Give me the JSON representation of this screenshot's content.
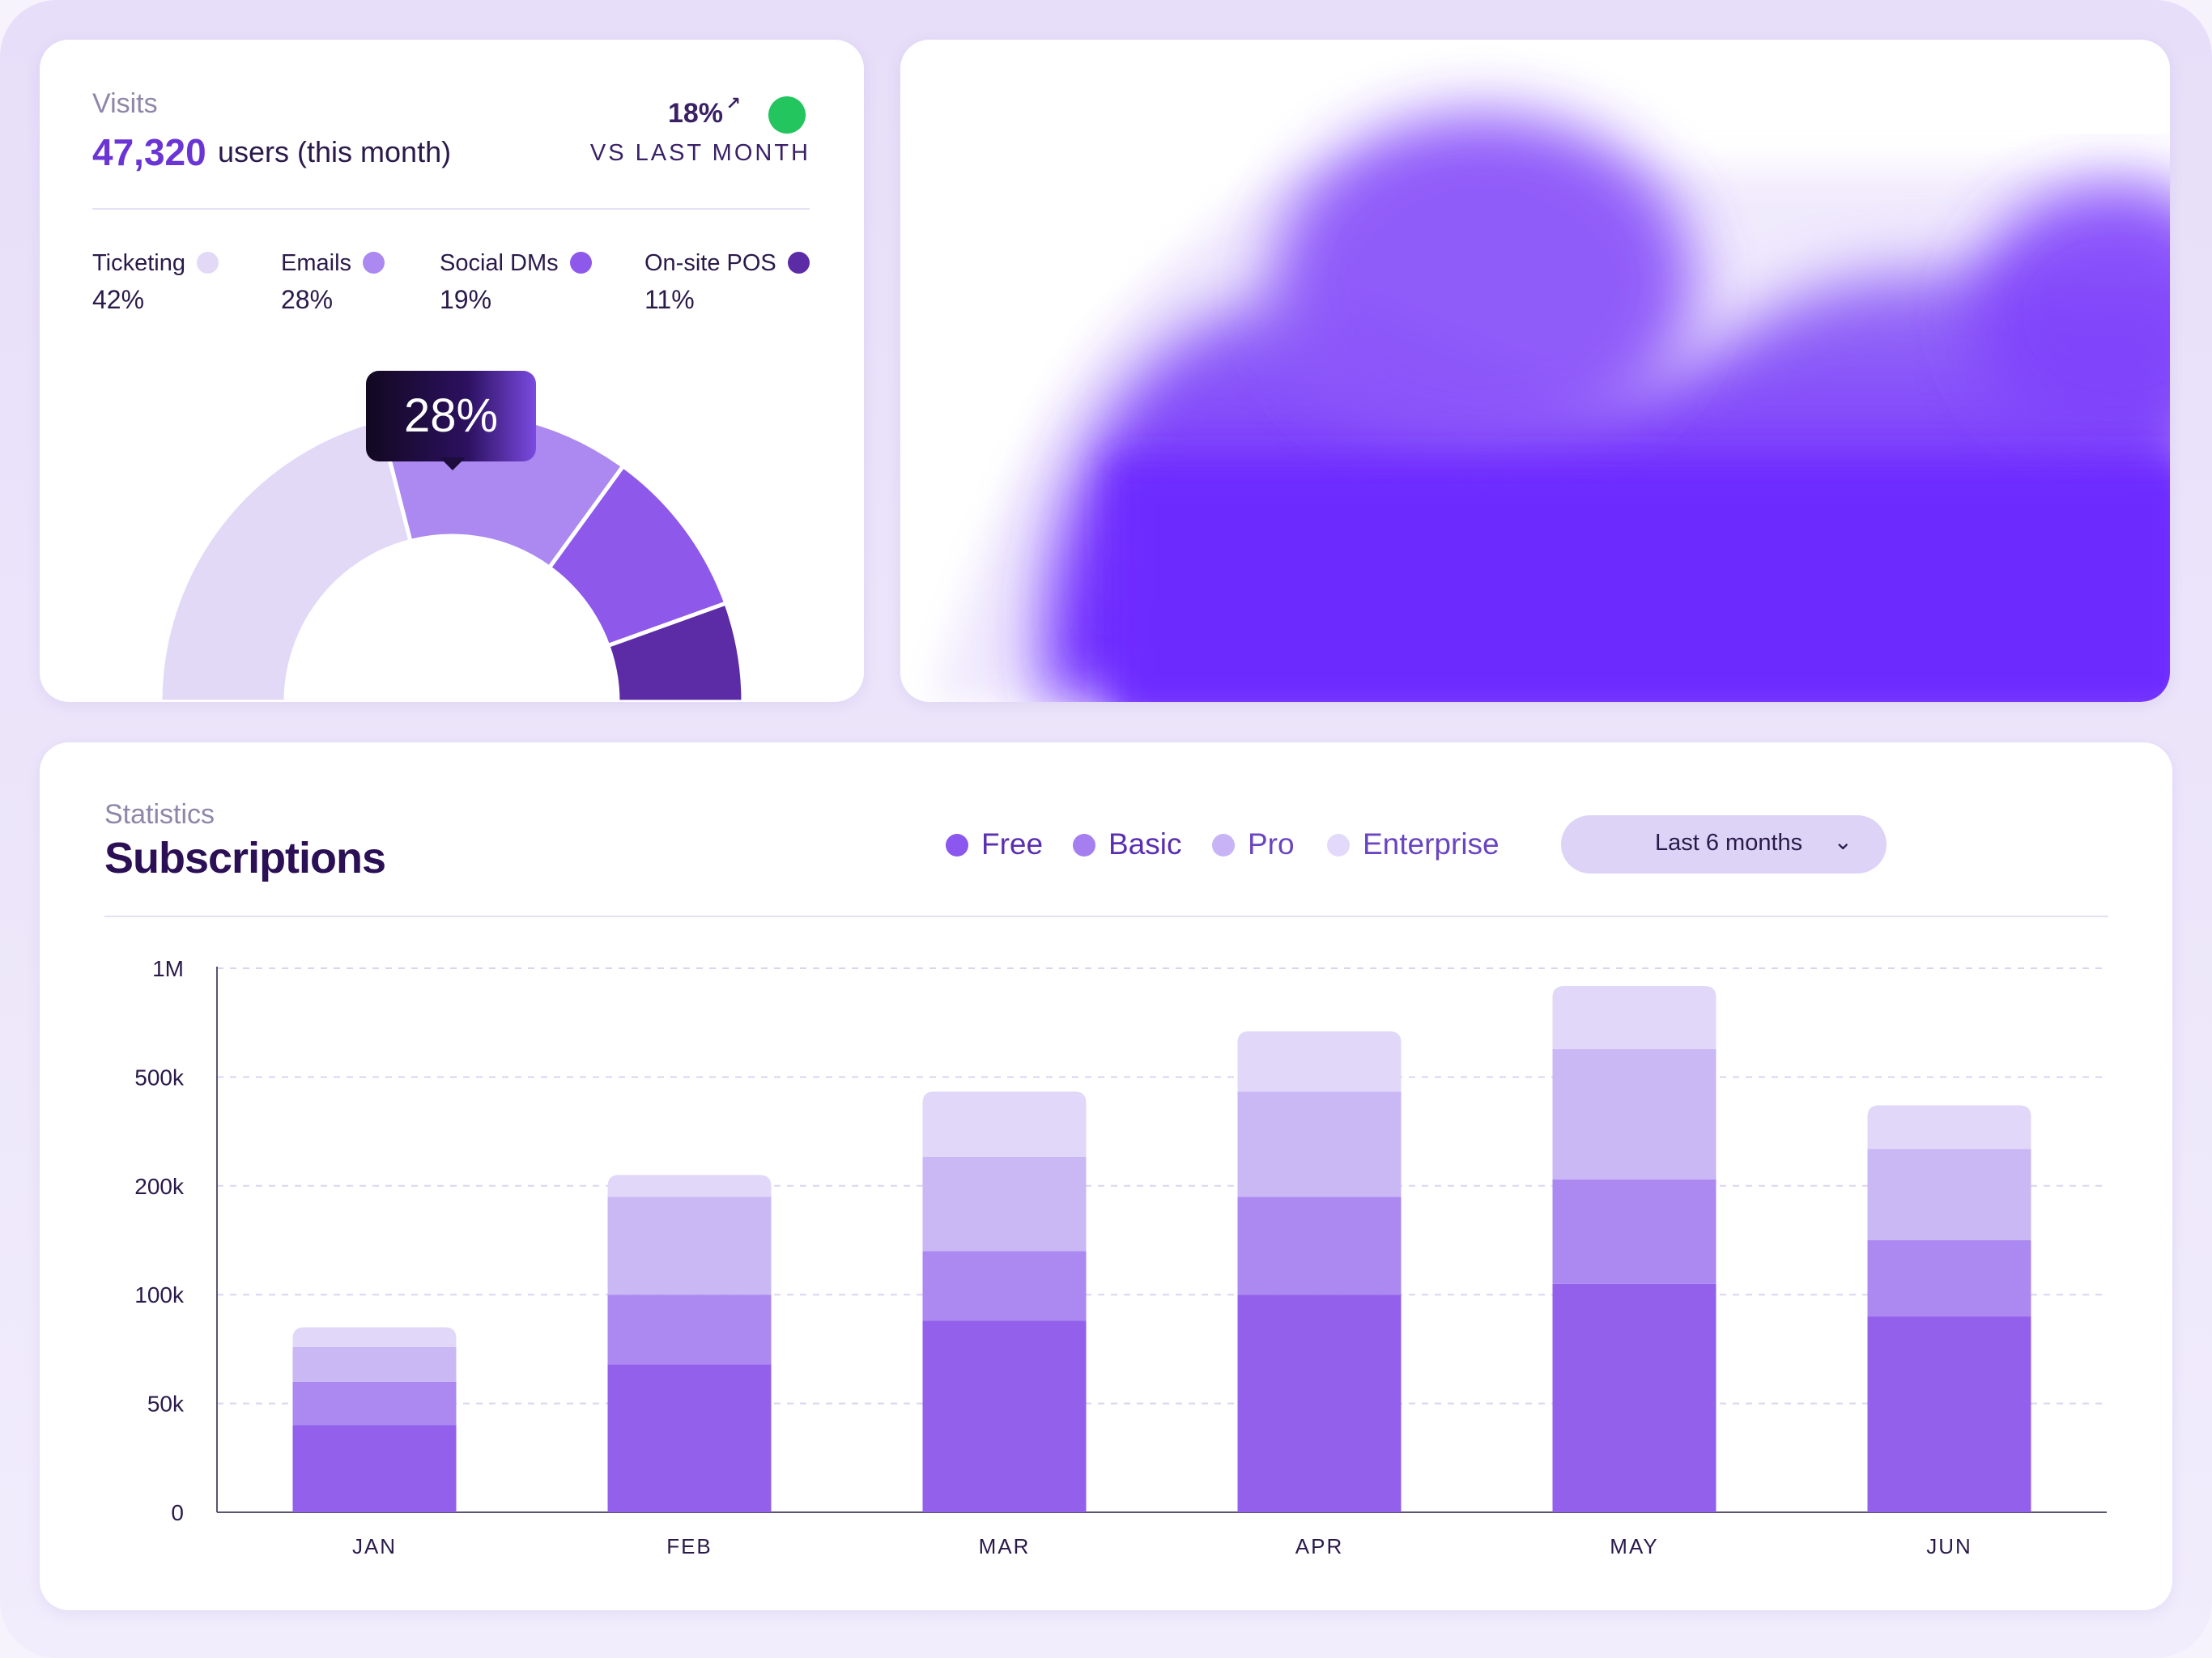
{
  "visits": {
    "label": "Visits",
    "count": "47,320",
    "suffix": "users (this month)",
    "delta": "18%",
    "delta_arrow": "↗",
    "vs_label": "VS LAST MONTH",
    "status_color": "#22c55e",
    "legend": [
      {
        "name": "Ticketing",
        "pct": "42%",
        "color": "#e2d9f7"
      },
      {
        "name": "Emails",
        "pct": "28%",
        "color": "#ab89f1"
      },
      {
        "name": "Social DMs",
        "pct": "19%",
        "color": "#8e58ea"
      },
      {
        "name": "On-site POS",
        "pct": "11%",
        "color": "#5c2ba6"
      }
    ],
    "donut_values": [
      42,
      28,
      19,
      11
    ],
    "highlight_label": "28%"
  },
  "hero": {
    "icon": "abstract-purple-gradient-illustration",
    "colors": [
      "#6f2dfd",
      "#8a5cf6",
      "#b79cf8"
    ]
  },
  "subscriptions": {
    "label": "Statistics",
    "title": "Subscriptions",
    "legend": [
      {
        "name": "Free",
        "color": "#8b57ee"
      },
      {
        "name": "Basic",
        "color": "#a57ff0"
      },
      {
        "name": "Pro",
        "color": "#c7b3f6"
      },
      {
        "name": "Enterprise",
        "color": "#e3dafb"
      }
    ],
    "range_label": "Last 6 months",
    "range_icon": "chevron-down-icon"
  },
  "chart_data": {
    "type": "bar",
    "stacked": true,
    "title": "Subscriptions",
    "xlabel": "",
    "ylabel": "",
    "y_ticks": [
      "0",
      "50k",
      "100k",
      "200k",
      "500k",
      "1M"
    ],
    "y_scale": "non-linear (ticks evenly spaced)",
    "grid": true,
    "categories": [
      "JAN",
      "FEB",
      "MAR",
      "APR",
      "MAY",
      "JUN"
    ],
    "series": [
      {
        "name": "Free",
        "color": "#9360eb",
        "values": [
          40000,
          68000,
          88000,
          100000,
          110000,
          90000
        ]
      },
      {
        "name": "Basic",
        "color": "#ab89f1",
        "values": [
          20000,
          32000,
          52000,
          90000,
          108000,
          60000
        ]
      },
      {
        "name": "Pro",
        "color": "#cab8f5",
        "values": [
          16000,
          90000,
          140000,
          270000,
          410000,
          152000
        ]
      },
      {
        "name": "Enterprise",
        "color": "#e1d7f8",
        "values": [
          9000,
          40000,
          180000,
          250000,
          290000,
          120000
        ]
      }
    ]
  }
}
